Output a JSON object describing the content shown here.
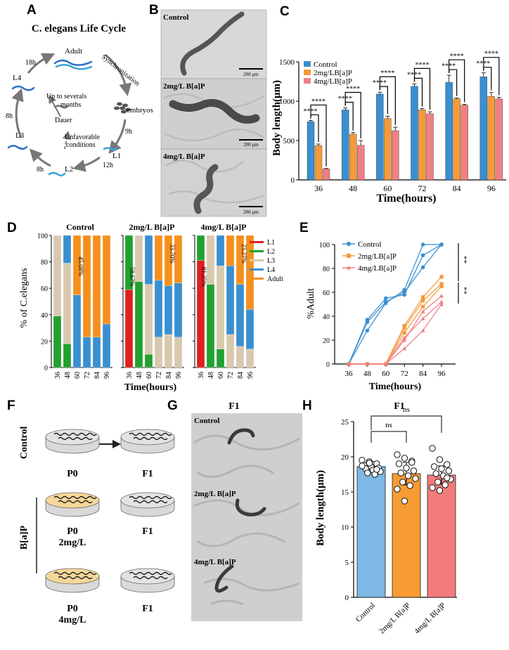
{
  "colors": {
    "control": "#3a8fd0",
    "mid": "#f59a3a",
    "high": "#f07f82",
    "L1": "#e02020",
    "L2": "#22a12f",
    "L3": "#d8c8ae",
    "L4": "#3a8fd0",
    "Adult": "#f5901e",
    "ctrl_H": "#7db8e6",
    "mid_H": "#f79b35",
    "high_H": "#f47b7b",
    "dish_yellow": "#f6d79a",
    "dish_grey": "#e3e3e3",
    "micrograph": "#d6d6d6"
  },
  "panels": {
    "A": "A",
    "B": "B",
    "C": "C",
    "D": "D",
    "E": "E",
    "F": "F",
    "G": "G",
    "H": "H"
  },
  "panelA": {
    "title": "C. elegans Life Cycle",
    "stages": {
      "adult": "Adult",
      "sync": "Synchronization",
      "embryos": "embryos",
      "l1": "L1",
      "l2": "L2",
      "l3": "L3",
      "l4": "L4",
      "dauer": "Dauer",
      "up1": "Up to severals",
      "up2": "months",
      "unf1": "Unfavorable",
      "unf2": "conditions"
    },
    "times": {
      "t18": "18h",
      "t9": "9h",
      "t12": "12h",
      "t8a": "8h",
      "t8b": "8h"
    }
  },
  "panelB": {
    "labels": [
      "Control",
      "2mg/L B[a]P",
      "4mg/L B[a]P"
    ],
    "scalebar": "200 μm"
  },
  "chart_data": [
    {
      "id": "C",
      "type": "bar",
      "xlabel": "Time(hours)",
      "ylabel": "Body length(μm)",
      "categories": [
        "36",
        "48",
        "60",
        "72",
        "84",
        "96"
      ],
      "ylim": [
        0,
        1500
      ],
      "yticks": [
        "0",
        "500",
        "1000",
        "1500"
      ],
      "series": [
        {
          "name": "Control",
          "values": [
            740,
            890,
            1090,
            1190,
            1240,
            1310
          ],
          "err": [
            15,
            25,
            25,
            30,
            90,
            50
          ]
        },
        {
          "name": "2mg/LB[a]P",
          "values": [
            435,
            580,
            780,
            890,
            1030,
            1060
          ],
          "err": [
            20,
            20,
            30,
            15,
            10,
            50
          ]
        },
        {
          "name": "4mg/LB[a]P",
          "values": [
            140,
            440,
            625,
            840,
            950,
            1030
          ],
          "err": [
            5,
            60,
            45,
            25,
            10,
            20
          ]
        }
      ],
      "annotation": "****"
    },
    {
      "id": "D",
      "type": "bar",
      "stacked": true,
      "ylabel": "% of C.elegans",
      "xlabel": "Time(hours)",
      "ylim": [
        0,
        100
      ],
      "yticks": [
        "0",
        "20",
        "40",
        "60",
        "80",
        "100"
      ],
      "stages": [
        "L1",
        "L2",
        "L3",
        "L4",
        "Adult"
      ],
      "groups": [
        {
          "title": "Control",
          "categories": [
            "36",
            "48",
            "60",
            "72",
            "84",
            "96"
          ],
          "values": [
            [
              0,
              39,
              61,
              0,
              0
            ],
            [
              0,
              18,
              61,
              21,
              0
            ],
            [
              0,
              0,
              0,
              55,
              45
            ],
            [
              0,
              0,
              0,
              23,
              77
            ],
            [
              0,
              0,
              0,
              23,
              77
            ],
            [
              0,
              0,
              0,
              33,
              67
            ]
          ],
          "note": "45.08%"
        },
        {
          "title": "2mg/L B[a]P",
          "categories": [
            "36",
            "48",
            "60",
            "72",
            "84",
            "96"
          ],
          "values": [
            [
              59,
              41,
              0,
              0,
              0
            ],
            [
              0,
              65,
              35,
              0,
              0
            ],
            [
              0,
              10,
              53,
              37,
              0
            ],
            [
              0,
              0,
              23,
              43,
              34
            ],
            [
              0,
              0,
              25,
              37,
              38
            ],
            [
              0,
              0,
              23,
              41,
              36
            ]
          ],
          "note1": "58.67%",
          "note2": "33.70%"
        },
        {
          "title": "4mg/L B[a]P",
          "categories": [
            "36",
            "48",
            "60",
            "72",
            "84",
            "96"
          ],
          "values": [
            [
              81,
              19,
              0,
              0,
              0
            ],
            [
              0,
              63,
              37,
              0,
              0
            ],
            [
              0,
              14,
              63,
              23,
              0
            ],
            [
              0,
              0,
              25,
              52,
              23
            ],
            [
              0,
              0,
              16,
              47,
              37
            ],
            [
              0,
              0,
              14,
              30,
              56
            ]
          ],
          "note1": "81.25%",
          "note2": "23.27%"
        }
      ]
    },
    {
      "id": "E",
      "type": "line",
      "xlabel": "Time(hours)",
      "ylabel": "%Adult",
      "x": [
        36,
        48,
        60,
        72,
        84,
        96
      ],
      "xticks": [
        "36",
        "48",
        "60",
        "72",
        "84",
        "96"
      ],
      "ylim": [
        0,
        100
      ],
      "yticks": [
        "0",
        "20",
        "40",
        "60",
        "80",
        "100"
      ],
      "series": [
        {
          "name": "Control",
          "replicates": [
            [
              0,
              28,
              51,
              62,
              100,
              100
            ],
            [
              0,
              35,
              52,
              60,
              81,
              100
            ],
            [
              0,
              37,
              55,
              58,
              91,
              100
            ]
          ]
        },
        {
          "name": "2mg/LB[a]P",
          "replicates": [
            [
              0,
              0,
              0,
              32,
              56,
              73
            ],
            [
              0,
              0,
              0,
              26,
              48,
              65
            ],
            [
              0,
              0,
              0,
              30,
              53,
              67
            ]
          ]
        },
        {
          "name": "4mg/LB[a]P",
          "replicates": [
            [
              0,
              0,
              0,
              22,
              38,
              52
            ],
            [
              0,
              0,
              0,
              13,
              28,
              50
            ],
            [
              0,
              0,
              0,
              20,
              44,
              57
            ]
          ]
        }
      ],
      "annotation": "**"
    },
    {
      "id": "H",
      "type": "bar",
      "title": "F1",
      "ylabel": "Body length(μm)",
      "categories": [
        "Control",
        "2mg/L B[a]P",
        "4mg/L B[a]P"
      ],
      "values": [
        18.6,
        17.6,
        17.4
      ],
      "err": [
        0.7,
        1.6,
        1.3
      ],
      "ylim": [
        0,
        25
      ],
      "yticks": [
        "0",
        "5",
        "10",
        "15",
        "20",
        "25"
      ],
      "points": [
        [
          19.5,
          19.3,
          19.0,
          18.8,
          18.6,
          18.4,
          18.3,
          18.1,
          17.9,
          17.7,
          17.5,
          18.7,
          19.1,
          18.2
        ],
        [
          20.3,
          19.8,
          19.4,
          19.0,
          18.4,
          18.0,
          17.7,
          17.3,
          16.9,
          16.4,
          15.9,
          15.4,
          13.7,
          19.2
        ],
        [
          21.2,
          19.6,
          18.9,
          18.6,
          18.3,
          18.0,
          17.6,
          17.3,
          16.8,
          16.4,
          16.0,
          15.6,
          15.2,
          17.0
        ]
      ],
      "annotation": "ns"
    }
  ],
  "panelF": {
    "control_label": "Control",
    "bap_label": "B[a]P",
    "p0": "P0",
    "f1": "F1",
    "dose2": "2mg/L",
    "dose4": "4mg/L"
  },
  "panelG": {
    "title": "F1",
    "labels": [
      "Control",
      "2mg/L B[a]P",
      "4mg/L B[a]P"
    ]
  }
}
